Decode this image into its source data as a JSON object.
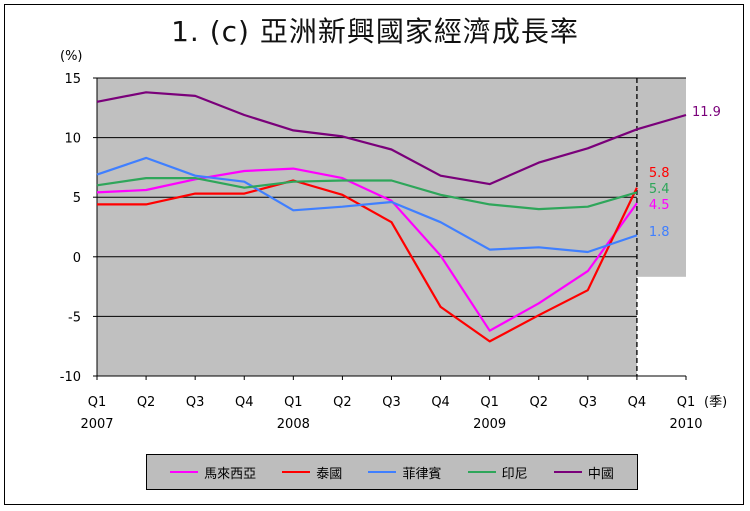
{
  "title": "1. (c)  亞洲新興國家經濟成長率",
  "chart_data": {
    "type": "line",
    "title": "1. (c)  亞洲新興國家經濟成長率",
    "ylabel": "(%)",
    "xlabel": "(季)",
    "ylim": [
      -10,
      15
    ],
    "yticks": [
      -10,
      -5,
      0,
      5,
      10,
      15
    ],
    "categories": [
      "Q1",
      "Q2",
      "Q3",
      "Q4",
      "Q1",
      "Q2",
      "Q3",
      "Q4",
      "Q1",
      "Q2",
      "Q3",
      "Q4",
      "Q1"
    ],
    "years": [
      {
        "label": "2007",
        "at": 0
      },
      {
        "label": "2008",
        "at": 4
      },
      {
        "label": "2009",
        "at": 8
      },
      {
        "label": "2010",
        "at": 12
      }
    ],
    "forecast_divider_after_index": 11,
    "plot_background": "#c0c0c0",
    "grid": true,
    "legend_position": "bottom",
    "series": [
      {
        "name": "馬來西亞",
        "color": "#ff00ff",
        "values": [
          5.4,
          5.6,
          6.5,
          7.2,
          7.4,
          6.6,
          4.7,
          0.1,
          -6.2,
          -3.9,
          -1.2,
          4.5,
          null
        ],
        "end_label": "4.5"
      },
      {
        "name": "泰國",
        "color": "#ff0000",
        "values": [
          4.4,
          4.4,
          5.3,
          5.3,
          6.4,
          5.2,
          2.9,
          -4.2,
          -7.1,
          -4.9,
          -2.8,
          5.8,
          null
        ],
        "end_label": "5.8"
      },
      {
        "name": "菲律賓",
        "color": "#3f7fff",
        "values": [
          6.9,
          8.3,
          6.8,
          6.3,
          3.9,
          4.2,
          4.6,
          2.9,
          0.6,
          0.8,
          0.4,
          1.8,
          null
        ],
        "end_label": "1.8"
      },
      {
        "name": "印尼",
        "color": "#2ea65a",
        "values": [
          6.0,
          6.6,
          6.6,
          5.8,
          6.3,
          6.4,
          6.4,
          5.2,
          4.4,
          4.0,
          4.2,
          5.4,
          null
        ],
        "end_label": "5.4"
      },
      {
        "name": "中國",
        "color": "#7a007a",
        "values": [
          13.0,
          13.8,
          13.5,
          11.9,
          10.6,
          10.1,
          9.0,
          6.8,
          6.1,
          7.9,
          9.1,
          10.7,
          11.9
        ],
        "end_label": "11.9"
      }
    ]
  }
}
